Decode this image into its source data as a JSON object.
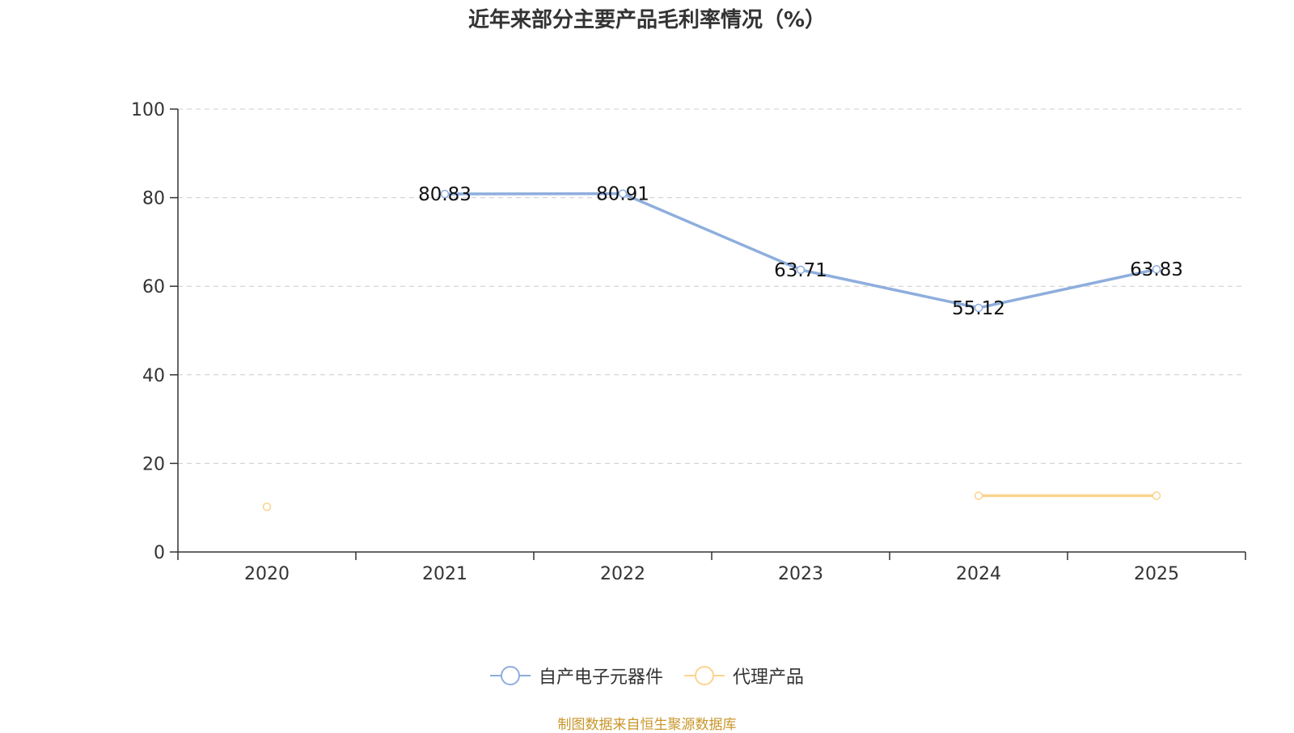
{
  "chart_data": {
    "type": "line",
    "title": "近年来部分主要产品毛利率情况（%）",
    "categories": [
      "2020",
      "2021",
      "2022",
      "2023",
      "2024",
      "2025"
    ],
    "ylim": [
      0,
      100
    ],
    "yticks": [
      0,
      20,
      40,
      60,
      80,
      100
    ],
    "grid": true,
    "legend_position": "bottom-center",
    "series": [
      {
        "name": "自产电子元器件",
        "color": "#8eaedd",
        "values": [
          null,
          80.83,
          80.91,
          63.71,
          55.12,
          63.83
        ],
        "labels": [
          null,
          "80.83",
          "80.91",
          "63.71",
          "55.12",
          "63.83"
        ]
      },
      {
        "name": "代理产品",
        "color": "#fcd38d",
        "values": [
          10.2,
          null,
          null,
          null,
          12.7,
          12.7
        ],
        "labels": [
          null,
          null,
          null,
          null,
          null,
          null
        ]
      }
    ]
  },
  "source_note": "制图数据来自恒生聚源数据库"
}
